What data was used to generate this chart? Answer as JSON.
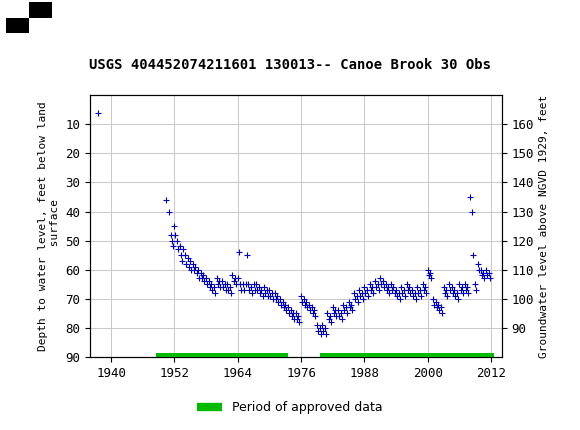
{
  "title": "USGS 404452074211601 130013-- Canoe Brook 30 Obs",
  "ylabel_left": "Depth to water level, feet below land\n surface",
  "ylabel_right": "Groundwater level above NGVD 1929, feet",
  "ylim_left": [
    90,
    0
  ],
  "ylim_right": [
    80,
    170
  ],
  "xlim": [
    1936,
    2014
  ],
  "yticks_left": [
    10,
    20,
    30,
    40,
    50,
    60,
    70,
    80,
    90
  ],
  "yticks_right": [
    90,
    100,
    110,
    120,
    130,
    140,
    150,
    160
  ],
  "xticks": [
    1940,
    1952,
    1964,
    1976,
    1988,
    2000,
    2012
  ],
  "header_color": "#1a6b3a",
  "plot_bg_color": "#ffffff",
  "grid_color": "#c8c8c8",
  "data_color": "#0000bb",
  "approved_bar_color": "#00bb00",
  "approved_bar_xranges": [
    [
      1948.5,
      1973.5
    ],
    [
      1979.5,
      2012.5
    ]
  ],
  "legend_label": "Period of approved data",
  "scatter_data": [
    [
      1937.5,
      6.0
    ],
    [
      1950.5,
      36.0
    ],
    [
      1951.0,
      40.0
    ],
    [
      1951.3,
      48.0
    ],
    [
      1951.5,
      50.0
    ],
    [
      1951.7,
      52.0
    ],
    [
      1952.0,
      45.0
    ],
    [
      1952.2,
      48.0
    ],
    [
      1952.5,
      50.0
    ],
    [
      1952.7,
      53.0
    ],
    [
      1953.0,
      52.0
    ],
    [
      1953.2,
      55.0
    ],
    [
      1953.5,
      57.0
    ],
    [
      1953.7,
      53.0
    ],
    [
      1954.0,
      55.0
    ],
    [
      1954.2,
      58.0
    ],
    [
      1954.5,
      56.0
    ],
    [
      1954.7,
      59.0
    ],
    [
      1955.0,
      57.0
    ],
    [
      1955.2,
      60.0
    ],
    [
      1955.5,
      58.0
    ],
    [
      1955.7,
      60.0
    ],
    [
      1956.0,
      59.0
    ],
    [
      1956.2,
      61.0
    ],
    [
      1956.5,
      60.0
    ],
    [
      1956.7,
      63.0
    ],
    [
      1957.0,
      61.0
    ],
    [
      1957.2,
      63.0
    ],
    [
      1957.5,
      62.0
    ],
    [
      1957.7,
      64.0
    ],
    [
      1958.0,
      63.0
    ],
    [
      1958.2,
      65.0
    ],
    [
      1958.5,
      64.0
    ],
    [
      1958.7,
      66.0
    ],
    [
      1959.0,
      65.0
    ],
    [
      1959.2,
      67.0
    ],
    [
      1959.5,
      66.0
    ],
    [
      1959.7,
      68.0
    ],
    [
      1960.0,
      63.0
    ],
    [
      1960.2,
      65.0
    ],
    [
      1960.5,
      64.0
    ],
    [
      1960.7,
      66.0
    ],
    [
      1961.0,
      64.0
    ],
    [
      1961.2,
      66.0
    ],
    [
      1961.5,
      65.0
    ],
    [
      1961.7,
      67.0
    ],
    [
      1962.0,
      65.0
    ],
    [
      1962.2,
      67.0
    ],
    [
      1962.5,
      66.0
    ],
    [
      1962.7,
      68.0
    ],
    [
      1963.0,
      62.0
    ],
    [
      1963.2,
      64.0
    ],
    [
      1963.5,
      63.0
    ],
    [
      1963.7,
      65.0
    ],
    [
      1964.0,
      63.0
    ],
    [
      1964.2,
      54.0
    ],
    [
      1964.5,
      65.0
    ],
    [
      1964.7,
      67.0
    ],
    [
      1965.0,
      65.0
    ],
    [
      1965.2,
      67.0
    ],
    [
      1965.5,
      65.0
    ],
    [
      1965.7,
      55.0
    ],
    [
      1966.0,
      65.0
    ],
    [
      1966.2,
      67.0
    ],
    [
      1966.5,
      66.0
    ],
    [
      1966.7,
      68.0
    ],
    [
      1967.0,
      65.0
    ],
    [
      1967.2,
      67.0
    ],
    [
      1967.5,
      65.0
    ],
    [
      1967.7,
      67.0
    ],
    [
      1968.0,
      66.0
    ],
    [
      1968.2,
      68.0
    ],
    [
      1968.5,
      67.0
    ],
    [
      1968.7,
      69.0
    ],
    [
      1969.0,
      66.0
    ],
    [
      1969.2,
      68.0
    ],
    [
      1969.5,
      67.0
    ],
    [
      1969.7,
      69.0
    ],
    [
      1970.0,
      67.0
    ],
    [
      1970.2,
      69.0
    ],
    [
      1970.5,
      68.0
    ],
    [
      1970.7,
      70.0
    ],
    [
      1971.0,
      68.0
    ],
    [
      1971.2,
      70.0
    ],
    [
      1971.5,
      69.0
    ],
    [
      1971.7,
      71.0
    ],
    [
      1972.0,
      70.0
    ],
    [
      1972.2,
      72.0
    ],
    [
      1972.5,
      71.0
    ],
    [
      1972.7,
      73.0
    ],
    [
      1973.0,
      72.0
    ],
    [
      1973.2,
      74.0
    ],
    [
      1973.5,
      73.0
    ],
    [
      1973.7,
      75.0
    ],
    [
      1974.0,
      74.0
    ],
    [
      1974.2,
      76.0
    ],
    [
      1974.5,
      75.0
    ],
    [
      1974.7,
      77.0
    ],
    [
      1975.0,
      75.0
    ],
    [
      1975.2,
      77.0
    ],
    [
      1975.5,
      76.0
    ],
    [
      1975.7,
      78.0
    ],
    [
      1976.0,
      69.0
    ],
    [
      1976.2,
      71.0
    ],
    [
      1976.5,
      70.0
    ],
    [
      1976.7,
      72.0
    ],
    [
      1977.0,
      71.0
    ],
    [
      1977.2,
      73.0
    ],
    [
      1977.5,
      72.0
    ],
    [
      1977.7,
      74.0
    ],
    [
      1978.0,
      73.0
    ],
    [
      1978.2,
      75.0
    ],
    [
      1978.5,
      74.0
    ],
    [
      1978.7,
      76.0
    ],
    [
      1979.0,
      79.0
    ],
    [
      1979.2,
      81.0
    ],
    [
      1979.5,
      80.0
    ],
    [
      1979.7,
      82.0
    ],
    [
      1980.0,
      79.0
    ],
    [
      1980.2,
      81.0
    ],
    [
      1980.5,
      80.0
    ],
    [
      1980.7,
      82.0
    ],
    [
      1981.0,
      75.0
    ],
    [
      1981.2,
      77.0
    ],
    [
      1981.5,
      76.0
    ],
    [
      1981.7,
      78.0
    ],
    [
      1982.0,
      73.0
    ],
    [
      1982.2,
      75.0
    ],
    [
      1982.5,
      74.0
    ],
    [
      1982.7,
      76.0
    ],
    [
      1983.0,
      74.0
    ],
    [
      1983.2,
      76.0
    ],
    [
      1983.5,
      75.0
    ],
    [
      1983.7,
      77.0
    ],
    [
      1984.0,
      72.0
    ],
    [
      1984.2,
      74.0
    ],
    [
      1984.5,
      73.0
    ],
    [
      1984.7,
      75.0
    ],
    [
      1985.0,
      71.0
    ],
    [
      1985.2,
      73.0
    ],
    [
      1985.5,
      72.0
    ],
    [
      1985.7,
      74.0
    ],
    [
      1986.0,
      68.0
    ],
    [
      1986.2,
      70.0
    ],
    [
      1986.5,
      69.0
    ],
    [
      1986.7,
      71.0
    ],
    [
      1987.0,
      67.0
    ],
    [
      1987.2,
      69.0
    ],
    [
      1987.5,
      68.0
    ],
    [
      1987.7,
      70.0
    ],
    [
      1988.0,
      66.0
    ],
    [
      1988.2,
      68.0
    ],
    [
      1988.5,
      67.0
    ],
    [
      1988.7,
      69.0
    ],
    [
      1989.0,
      65.0
    ],
    [
      1989.2,
      67.0
    ],
    [
      1989.5,
      66.0
    ],
    [
      1989.7,
      68.0
    ],
    [
      1990.0,
      64.0
    ],
    [
      1990.2,
      66.0
    ],
    [
      1990.5,
      65.0
    ],
    [
      1990.7,
      67.0
    ],
    [
      1991.0,
      63.0
    ],
    [
      1991.2,
      65.0
    ],
    [
      1991.5,
      64.0
    ],
    [
      1991.7,
      66.0
    ],
    [
      1992.0,
      65.0
    ],
    [
      1992.2,
      67.0
    ],
    [
      1992.5,
      66.0
    ],
    [
      1992.7,
      68.0
    ],
    [
      1993.0,
      65.0
    ],
    [
      1993.2,
      67.0
    ],
    [
      1993.5,
      66.0
    ],
    [
      1993.7,
      68.0
    ],
    [
      1994.0,
      67.0
    ],
    [
      1994.2,
      69.0
    ],
    [
      1994.5,
      68.0
    ],
    [
      1994.7,
      70.0
    ],
    [
      1995.0,
      66.0
    ],
    [
      1995.2,
      68.0
    ],
    [
      1995.5,
      67.0
    ],
    [
      1995.7,
      69.0
    ],
    [
      1996.0,
      65.0
    ],
    [
      1996.2,
      67.0
    ],
    [
      1996.5,
      66.0
    ],
    [
      1996.7,
      68.0
    ],
    [
      1997.0,
      67.0
    ],
    [
      1997.2,
      69.0
    ],
    [
      1997.5,
      68.0
    ],
    [
      1997.7,
      70.0
    ],
    [
      1998.0,
      66.0
    ],
    [
      1998.2,
      68.0
    ],
    [
      1998.5,
      67.0
    ],
    [
      1998.7,
      69.0
    ],
    [
      1999.0,
      65.0
    ],
    [
      1999.2,
      67.0
    ],
    [
      1999.5,
      66.0
    ],
    [
      1999.7,
      68.0
    ],
    [
      2000.0,
      60.0
    ],
    [
      2000.2,
      62.0
    ],
    [
      2000.5,
      61.0
    ],
    [
      2000.7,
      63.0
    ],
    [
      2001.0,
      70.0
    ],
    [
      2001.2,
      72.0
    ],
    [
      2001.5,
      71.0
    ],
    [
      2001.7,
      73.0
    ],
    [
      2002.0,
      72.0
    ],
    [
      2002.2,
      74.0
    ],
    [
      2002.5,
      73.0
    ],
    [
      2002.7,
      75.0
    ],
    [
      2003.0,
      66.0
    ],
    [
      2003.2,
      68.0
    ],
    [
      2003.5,
      67.0
    ],
    [
      2003.7,
      69.0
    ],
    [
      2004.0,
      65.0
    ],
    [
      2004.2,
      67.0
    ],
    [
      2004.5,
      66.0
    ],
    [
      2004.7,
      68.0
    ],
    [
      2005.0,
      67.0
    ],
    [
      2005.2,
      69.0
    ],
    [
      2005.5,
      68.0
    ],
    [
      2005.7,
      70.0
    ],
    [
      2006.0,
      65.0
    ],
    [
      2006.2,
      67.0
    ],
    [
      2006.5,
      66.0
    ],
    [
      2006.7,
      68.0
    ],
    [
      2007.0,
      65.0
    ],
    [
      2007.2,
      67.0
    ],
    [
      2007.5,
      66.0
    ],
    [
      2007.7,
      68.0
    ],
    [
      2008.0,
      35.0
    ],
    [
      2008.3,
      40.0
    ],
    [
      2008.6,
      55.0
    ],
    [
      2009.0,
      65.0
    ],
    [
      2009.2,
      67.0
    ],
    [
      2009.5,
      58.0
    ],
    [
      2009.7,
      60.0
    ],
    [
      2010.0,
      60.0
    ],
    [
      2010.2,
      62.0
    ],
    [
      2010.5,
      61.0
    ],
    [
      2010.7,
      63.0
    ],
    [
      2011.0,
      60.0
    ],
    [
      2011.2,
      62.0
    ],
    [
      2011.5,
      61.0
    ],
    [
      2011.7,
      63.0
    ]
  ]
}
